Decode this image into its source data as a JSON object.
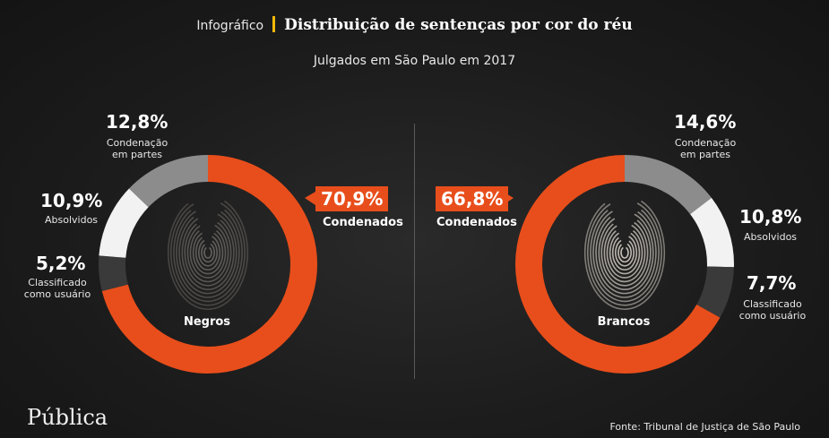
{
  "header": {
    "kicker": "Infográfico",
    "title": "Distribuição de sentenças por cor do réu",
    "subtitle": "Julgados em São Paulo em 2017"
  },
  "colors": {
    "condenados": "#e84e1b",
    "condenacao_em_partes": "#8c8c8c",
    "absolvidos": "#f2f2f2",
    "classificado_como_usuario": "#3a3a3a",
    "accent_bar": "#f2b80a"
  },
  "chart_data": [
    {
      "type": "pie",
      "name": "Negros",
      "slices": [
        {
          "key": "condenados",
          "label": "Condenados",
          "value": 70.9,
          "value_text": "70,9%"
        },
        {
          "key": "classificado_como_usuario",
          "label": "Classificado como usuário",
          "label_lines": [
            "Classificado",
            "como usuário"
          ],
          "value": 5.2,
          "value_text": "5,2%"
        },
        {
          "key": "absolvidos",
          "label": "Absolvidos",
          "label_lines": [
            "Absolvidos"
          ],
          "value": 10.9,
          "value_text": "10,9%"
        },
        {
          "key": "condenacao_em_partes",
          "label": "Condenação em partes",
          "label_lines": [
            "Condenação",
            "em partes"
          ],
          "value": 12.8,
          "value_text": "12,8%"
        }
      ]
    },
    {
      "type": "pie",
      "name": "Brancos",
      "slices": [
        {
          "key": "condenacao_em_partes",
          "label": "Condenação em partes",
          "label_lines": [
            "Condenação",
            "em partes"
          ],
          "value": 14.6,
          "value_text": "14,6%"
        },
        {
          "key": "absolvidos",
          "label": "Absolvidos",
          "label_lines": [
            "Absolvidos"
          ],
          "value": 10.8,
          "value_text": "10,8%"
        },
        {
          "key": "classificado_como_usuario",
          "label": "Classificado como usuário",
          "label_lines": [
            "Classificado",
            "como usuário"
          ],
          "value": 7.7,
          "value_text": "7,7%"
        },
        {
          "key": "condenados",
          "label": "Condenados",
          "value": 66.8,
          "value_text": "66,8%"
        }
      ]
    }
  ],
  "footer": {
    "logo": "Pública",
    "source": "Fonte: Tribunal de Justiça de São Paulo"
  }
}
